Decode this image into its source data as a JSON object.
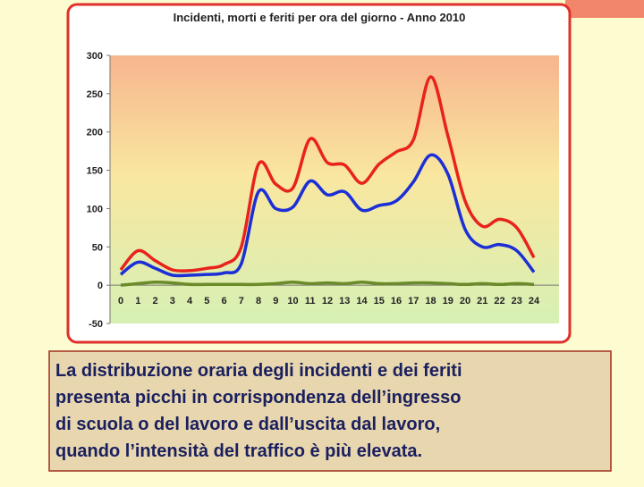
{
  "chart_data": {
    "type": "line",
    "title": "Incidenti, morti e feriti per ora del giorno - Anno 2010",
    "categories": [
      "0",
      "1",
      "2",
      "3",
      "4",
      "5",
      "6",
      "7",
      "8",
      "9",
      "10",
      "11",
      "12",
      "13",
      "14",
      "15",
      "16",
      "17",
      "18",
      "19",
      "20",
      "21",
      "22",
      "23",
      "24"
    ],
    "series": [
      {
        "color": "#e8231c",
        "values": [
          20,
          45,
          32,
          20,
          19,
          22,
          27,
          50,
          158,
          132,
          127,
          191,
          160,
          157,
          133,
          158,
          174,
          190,
          272,
          195,
          110,
          77,
          86,
          75,
          36
        ]
      },
      {
        "color": "#1c2fd6",
        "values": [
          14,
          30,
          22,
          13,
          13,
          14,
          16,
          28,
          122,
          100,
          102,
          136,
          118,
          122,
          98,
          104,
          110,
          135,
          170,
          145,
          73,
          50,
          53,
          45,
          17
        ]
      },
      {
        "color": "#6b8a2a",
        "values": [
          0,
          2,
          4,
          3,
          1,
          1,
          1,
          1,
          1,
          2,
          4,
          2,
          3,
          2,
          4,
          2,
          2,
          3,
          3,
          2,
          1,
          2,
          1,
          2,
          1
        ]
      }
    ],
    "ylim": [
      -50,
      300
    ],
    "yticks": [
      -50,
      0,
      50,
      100,
      150,
      200,
      250,
      300
    ]
  },
  "caption": {
    "lines": [
      "La distribuzione oraria degli incidenti e dei feriti",
      "presenta picchi in corrispondenza dell’ingresso",
      "di scuola o del lavoro e dall’uscita dal lavoro,",
      "quando l’intensità del traffico è più elevata."
    ]
  }
}
